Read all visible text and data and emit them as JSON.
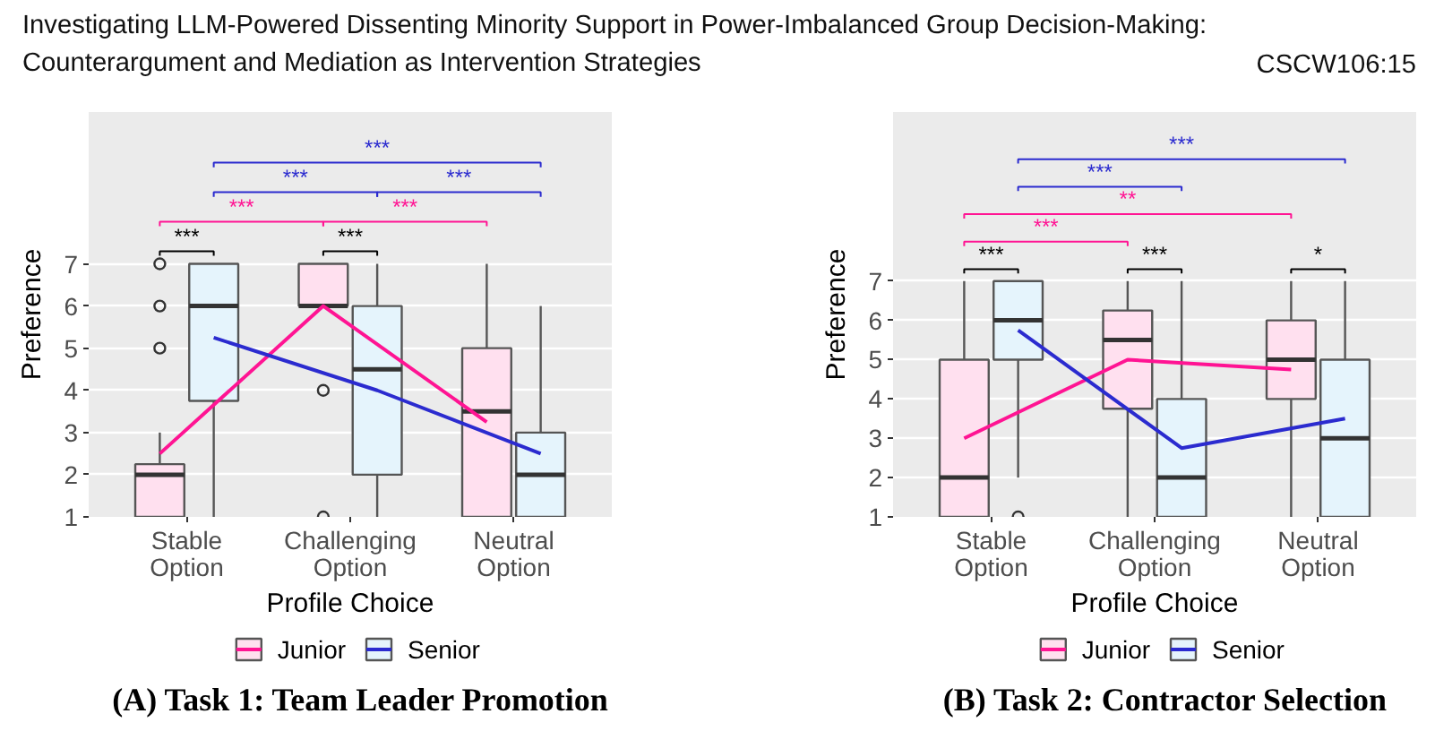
{
  "chart_data": [
    {
      "type": "other",
      "title": "Investigating LLM-Powered Dissenting Minority Support in Power-Imbalanced Group Decision-Making:\nCounterargument and Mediation as Intervention Strategies",
      "annotations": [
        "CSCW106:15"
      ]
    },
    {
      "type": "box",
      "title": "(A) Task 1: Team Leader Promotion",
      "xlabel": "Profile Choice",
      "ylabel": "Preference",
      "categories": [
        "Stable\nOption",
        "Challenging\nOption",
        "Neutral\nOption"
      ],
      "ylim": [
        1,
        10.6
      ],
      "yticks": [
        1,
        2,
        3,
        4,
        5,
        6,
        7
      ],
      "grid": "y",
      "legend": "bottom",
      "series": [
        {
          "name": "Junior",
          "color": "#ffe0ef",
          "boxes": [
            {
              "low": 1,
              "q1": 1,
              "median": 2,
              "q3": 2.25,
              "high": 3,
              "outliers": [
                5,
                6,
                7
              ]
            },
            {
              "low": 6,
              "q1": 6,
              "median": 6,
              "q3": 7,
              "high": 7,
              "outliers": [
                4,
                1
              ]
            },
            {
              "low": 1,
              "q1": 1,
              "median": 3.5,
              "q3": 5,
              "high": 7
            }
          ]
        },
        {
          "name": "Senior",
          "color": "#e5f4fc",
          "boxes": [
            {
              "low": 1,
              "q1": 3.75,
              "median": 6,
              "q3": 7,
              "high": 7
            },
            {
              "low": 1,
              "q1": 2,
              "median": 4.5,
              "q3": 6,
              "high": 7
            },
            {
              "low": 1,
              "q1": 1,
              "median": 2,
              "q3": 3,
              "high": 6
            }
          ]
        },
        {
          "type": "line",
          "color": "#ff1493",
          "values": [
            2.5,
            6,
            3.25
          ]
        },
        {
          "type": "line",
          "color": "#2b2bcf",
          "values": [
            5.25,
            4,
            2.5
          ]
        }
      ],
      "annotations": [
        "***",
        "***",
        "***",
        "***",
        "***",
        "***",
        "***"
      ]
    },
    {
      "type": "box",
      "title": "(B) Task 2: Contractor Selection",
      "xlabel": "Profile Choice",
      "ylabel": "Preference",
      "categories": [
        "Stable\nOption",
        "Challenging\nOption",
        "Neutral\nOption"
      ],
      "ylim": [
        1,
        11.3
      ],
      "yticks": [
        1,
        2,
        3,
        4,
        5,
        6,
        7
      ],
      "grid": "y",
      "legend": "bottom",
      "series": [
        {
          "name": "Junior",
          "color": "#ffe0ef",
          "boxes": [
            {
              "low": 1,
              "q1": 1,
              "median": 2,
              "q3": 5,
              "high": 7
            },
            {
              "low": 1,
              "q1": 3.75,
              "median": 5.5,
              "q3": 6.25,
              "high": 7
            },
            {
              "low": 1,
              "q1": 4,
              "median": 5,
              "q3": 6,
              "high": 7
            }
          ]
        },
        {
          "name": "Senior",
          "color": "#e5f4fc",
          "boxes": [
            {
              "low": 2,
              "q1": 5,
              "median": 6,
              "q3": 7,
              "high": 7,
              "outliers": [
                1
              ]
            },
            {
              "low": 1,
              "q1": 1,
              "median": 2,
              "q3": 4,
              "high": 7
            },
            {
              "low": 1,
              "q1": 1,
              "median": 3,
              "q3": 5,
              "high": 7
            }
          ]
        },
        {
          "type": "line",
          "color": "#ff1493",
          "values": [
            3,
            5,
            4.75
          ]
        },
        {
          "type": "line",
          "color": "#2b2bcf",
          "values": [
            5.75,
            2.75,
            3.5
          ]
        }
      ],
      "annotations": [
        "***",
        "***",
        "*",
        "***",
        "**",
        "***",
        "***"
      ]
    }
  ]
}
